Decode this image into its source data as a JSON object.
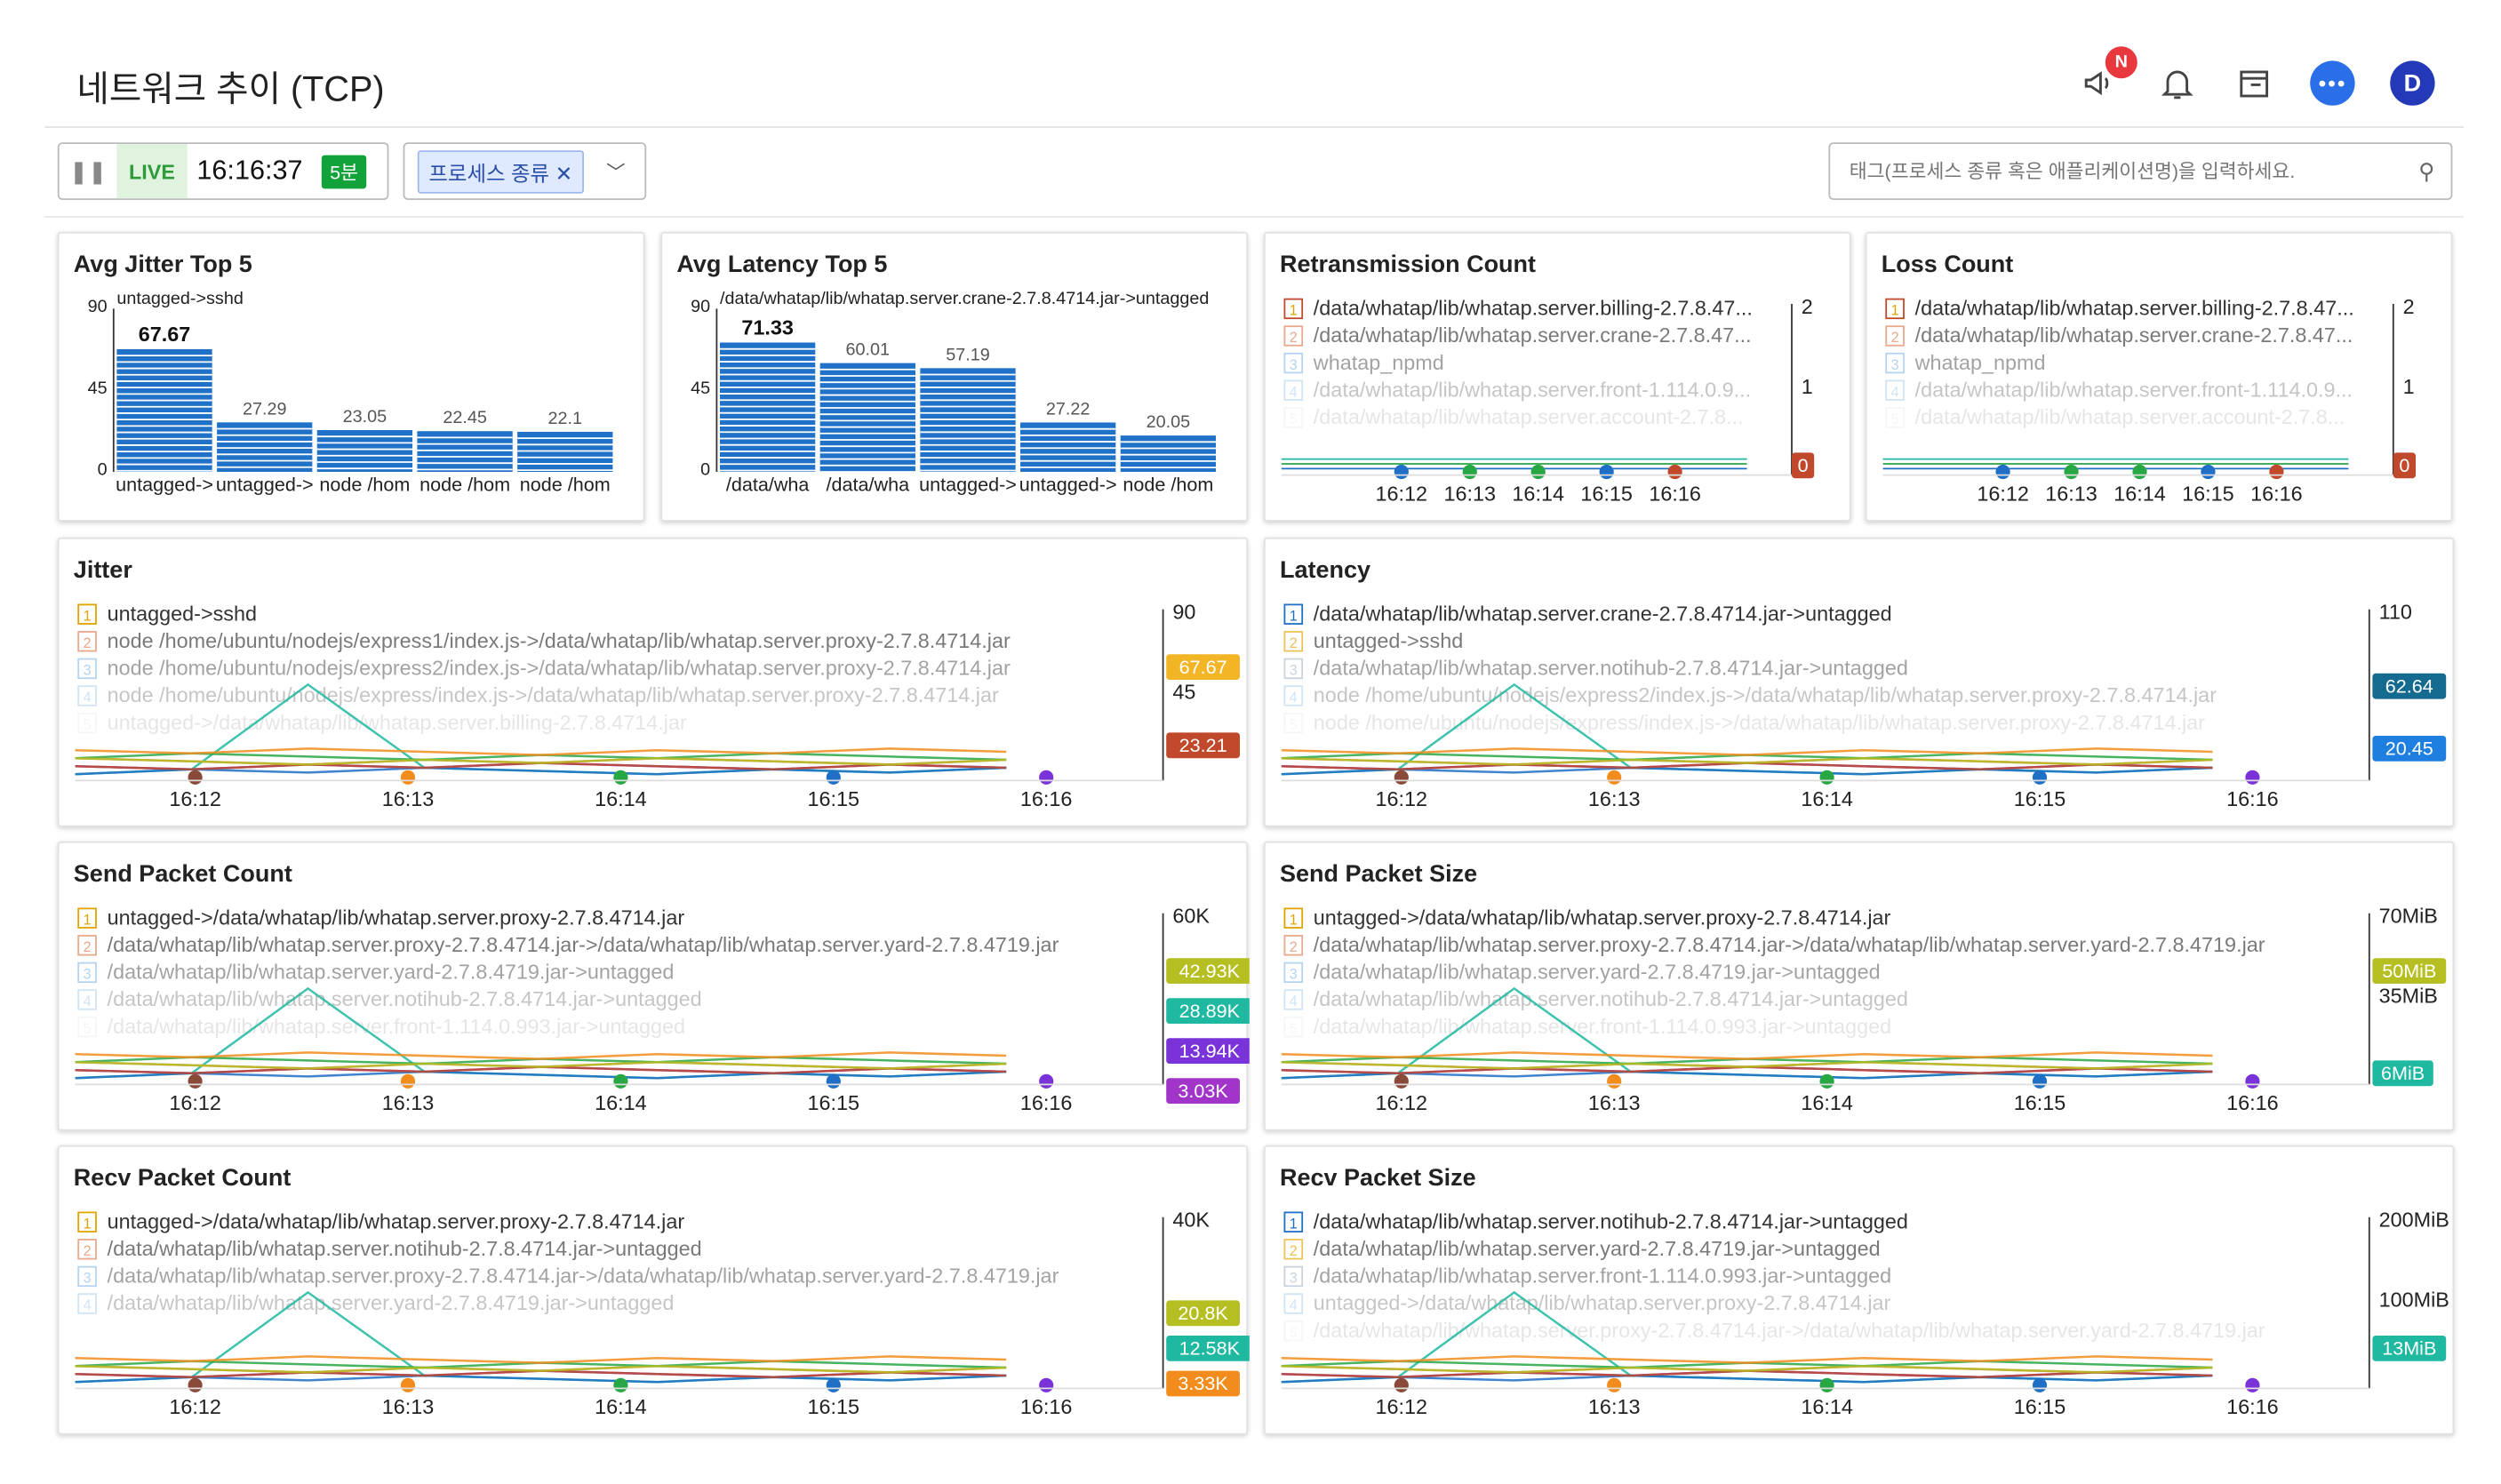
{
  "header": {
    "title": "네트워크 추이 (TCP)",
    "badge": "N",
    "avatar": "D"
  },
  "toolbar": {
    "live": "LIVE",
    "time": "16:16:37",
    "range": "5분",
    "chip": "프로세스 종류",
    "search_placeholder": "태그(프로세스 종류 혹은 애플리케이션명)을 입력하세요."
  },
  "colors": {
    "blue": "#1f6fc7",
    "orange": "#f28c1d",
    "green": "#28a745"
  },
  "time_ticks": [
    "16:12",
    "16:13",
    "16:14",
    "16:15",
    "16:16"
  ],
  "panels": [
    {
      "id": "avg-jitter",
      "title": "Avg Jitter Top 5",
      "chart_data": {
        "type": "bar",
        "y_ticks": [
          "90",
          "45",
          "0"
        ],
        "ylim": [
          0,
          90
        ],
        "top_label": "untagged->sshd",
        "categories": [
          "untagged->",
          "untagged->",
          "node /hom",
          "node /hom",
          "node /hom"
        ],
        "values": [
          67.67,
          27.29,
          23.05,
          22.45,
          22.1
        ],
        "labels": [
          "67.67",
          "27.29",
          "23.05",
          "22.45",
          "22.1"
        ]
      }
    },
    {
      "id": "avg-latency",
      "title": "Avg Latency Top 5",
      "chart_data": {
        "type": "bar",
        "y_ticks": [
          "90",
          "45",
          "0"
        ],
        "ylim": [
          0,
          90
        ],
        "top_label": "/data/whatap/lib/whatap.server.crane-2.7.8.4714.jar->untagged",
        "categories": [
          "/data/wha",
          "/data/wha",
          "untagged->",
          "untagged->",
          "node /hom"
        ],
        "values": [
          71.33,
          60.01,
          57.19,
          27.22,
          20.05
        ],
        "labels": [
          "71.33",
          "60.01",
          "57.19",
          "27.22",
          "20.05"
        ]
      }
    },
    {
      "id": "retrans",
      "title": "Retransmission Count",
      "legend": [
        "/data/whatap/lib/whatap.server.billing-2.7.8.47...",
        "/data/whatap/lib/whatap.server.crane-2.7.8.47...",
        "whatap_npmd",
        "/data/whatap/lib/whatap.server.front-1.114.0.9...",
        "/data/whatap/lib/whatap.server.account-2.7.8..."
      ],
      "y_ticks": [
        "2",
        "1"
      ],
      "value_tags": [
        {
          "text": "0",
          "color": "#c0492c"
        }
      ]
    },
    {
      "id": "loss",
      "title": "Loss Count",
      "legend": [
        "/data/whatap/lib/whatap.server.billing-2.7.8.47...",
        "/data/whatap/lib/whatap.server.crane-2.7.8.47...",
        "whatap_npmd",
        "/data/whatap/lib/whatap.server.front-1.114.0.9...",
        "/data/whatap/lib/whatap.server.account-2.7.8..."
      ],
      "y_ticks": [
        "2",
        "1"
      ],
      "value_tags": [
        {
          "text": "0",
          "color": "#c0492c"
        }
      ]
    },
    {
      "id": "jitter",
      "title": "Jitter",
      "legend": [
        "untagged->sshd",
        "node /home/ubuntu/nodejs/express1/index.js->/data/whatap/lib/whatap.server.proxy-2.7.8.4714.jar",
        "node /home/ubuntu/nodejs/express2/index.js->/data/whatap/lib/whatap.server.proxy-2.7.8.4714.jar",
        "node /home/ubuntu/nodejs/express/index.js->/data/whatap/lib/whatap.server.proxy-2.7.8.4714.jar",
        "untagged->/data/whatap/lib/whatap.server.billing-2.7.8.4714.jar"
      ],
      "y_ticks": [
        "90",
        "45"
      ],
      "value_tags": [
        {
          "text": "67.67",
          "color": "#f2b526"
        },
        {
          "text": "23.21",
          "color": "#c0492c"
        }
      ]
    },
    {
      "id": "latency",
      "title": "Latency",
      "legend": [
        "/data/whatap/lib/whatap.server.crane-2.7.8.4714.jar->untagged",
        "untagged->sshd",
        "/data/whatap/lib/whatap.server.notihub-2.7.8.4714.jar->untagged",
        "node /home/ubuntu/nodejs/express2/index.js->/data/whatap/lib/whatap.server.proxy-2.7.8.4714.jar",
        "node /home/ubuntu/nodejs/express/index.js->/data/whatap/lib/whatap.server.proxy-2.7.8.4714.jar"
      ],
      "y_ticks": [
        "110"
      ],
      "value_tags": [
        {
          "text": "62.64",
          "color": "#156a8f"
        },
        {
          "text": "20.45",
          "color": "#1f7fe0"
        }
      ]
    },
    {
      "id": "send-count",
      "title": "Send Packet Count",
      "legend": [
        "untagged->/data/whatap/lib/whatap.server.proxy-2.7.8.4714.jar",
        "/data/whatap/lib/whatap.server.proxy-2.7.8.4714.jar->/data/whatap/lib/whatap.server.yard-2.7.8.4719.jar",
        "/data/whatap/lib/whatap.server.yard-2.7.8.4719.jar->untagged",
        "/data/whatap/lib/whatap.server.notihub-2.7.8.4714.jar->untagged",
        "/data/whatap/lib/whatap.server.front-1.114.0.993.jar->untagged"
      ],
      "y_ticks": [
        "60K"
      ],
      "value_tags": [
        {
          "text": "42.93K",
          "color": "#b5bf22"
        },
        {
          "text": "28.89K",
          "color": "#1fb8a0"
        },
        {
          "text": "13.94K",
          "color": "#7a33d8"
        },
        {
          "text": "3.03K",
          "color": "#a235c9"
        }
      ]
    },
    {
      "id": "send-size",
      "title": "Send Packet Size",
      "legend": [
        "untagged->/data/whatap/lib/whatap.server.proxy-2.7.8.4714.jar",
        "/data/whatap/lib/whatap.server.proxy-2.7.8.4714.jar->/data/whatap/lib/whatap.server.yard-2.7.8.4719.jar",
        "/data/whatap/lib/whatap.server.yard-2.7.8.4719.jar->untagged",
        "/data/whatap/lib/whatap.server.notihub-2.7.8.4714.jar->untagged",
        "/data/whatap/lib/whatap.server.front-1.114.0.993.jar->untagged"
      ],
      "y_ticks": [
        "70MiB",
        "35MiB"
      ],
      "value_tags": [
        {
          "text": "50MiB",
          "color": "#b5bf22"
        },
        {
          "text": "6MiB",
          "color": "#1fb8a0"
        }
      ]
    },
    {
      "id": "recv-count",
      "title": "Recv Packet Count",
      "legend": [
        "untagged->/data/whatap/lib/whatap.server.proxy-2.7.8.4714.jar",
        "/data/whatap/lib/whatap.server.notihub-2.7.8.4714.jar->untagged",
        "/data/whatap/lib/whatap.server.proxy-2.7.8.4714.jar->/data/whatap/lib/whatap.server.yard-2.7.8.4719.jar",
        "/data/whatap/lib/whatap.server.yard-2.7.8.4719.jar->untagged"
      ],
      "y_ticks": [
        "40K"
      ],
      "value_tags": [
        {
          "text": "20.8K",
          "color": "#b5bf22"
        },
        {
          "text": "12.58K",
          "color": "#1fb8a0"
        },
        {
          "text": "3.33K",
          "color": "#f28c1d"
        }
      ]
    },
    {
      "id": "recv-size",
      "title": "Recv Packet Size",
      "legend": [
        "/data/whatap/lib/whatap.server.notihub-2.7.8.4714.jar->untagged",
        "/data/whatap/lib/whatap.server.yard-2.7.8.4719.jar->untagged",
        "/data/whatap/lib/whatap.server.front-1.114.0.993.jar->untagged",
        "untagged->/data/whatap/lib/whatap.server.proxy-2.7.8.4714.jar",
        "/data/whatap/lib/whatap.server.proxy-2.7.8.4714.jar->/data/whatap/lib/whatap.server.yard-2.7.8.4719.jar"
      ],
      "y_ticks": [
        "200MiB",
        "100MiB"
      ],
      "value_tags": [
        {
          "text": "13MiB",
          "color": "#1fb8a0"
        }
      ]
    }
  ]
}
